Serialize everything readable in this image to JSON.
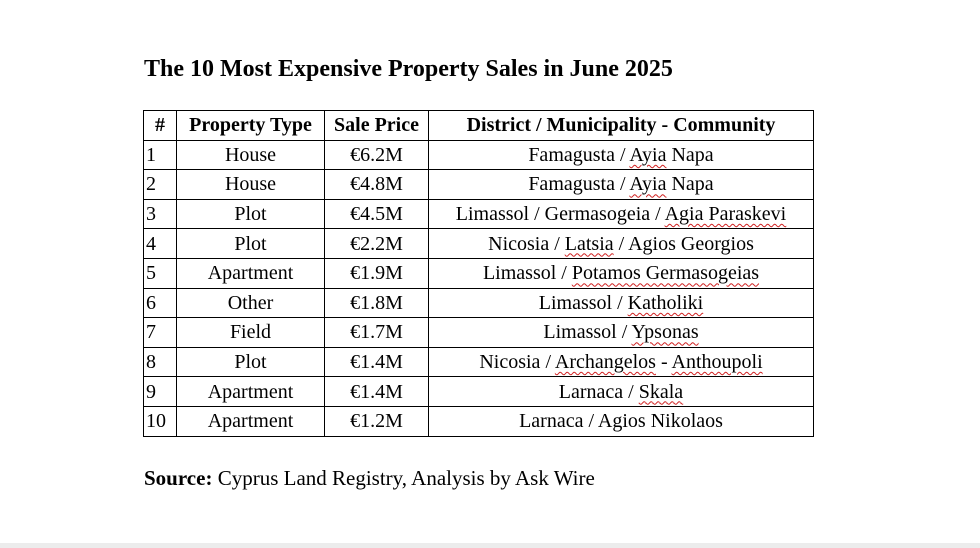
{
  "title": "The 10 Most Expensive Property Sales in June 2025",
  "table": {
    "headers": [
      "#",
      "Property Type",
      "Sale Price",
      "District / Municipality - Community"
    ],
    "rows": [
      {
        "rank": "1",
        "type": "House",
        "price": "€6.2M",
        "location": [
          {
            "text": "Famagusta / "
          },
          {
            "text": "Ayia",
            "spell": true
          },
          {
            "text": " Napa"
          }
        ]
      },
      {
        "rank": "2",
        "type": "House",
        "price": "€4.8M",
        "location": [
          {
            "text": "Famagusta / "
          },
          {
            "text": "Ayia",
            "spell": true
          },
          {
            "text": " Napa"
          }
        ]
      },
      {
        "rank": "3",
        "type": "Plot",
        "price": "€4.5M",
        "location": [
          {
            "text": "Limassol / Germasogeia / "
          },
          {
            "text": "Agia Paraskevi",
            "spell": true
          }
        ]
      },
      {
        "rank": "4",
        "type": "Plot",
        "price": "€2.2M",
        "location": [
          {
            "text": "Nicosia / "
          },
          {
            "text": "Latsia",
            "spell": true
          },
          {
            "text": " / Agios Georgios"
          }
        ]
      },
      {
        "rank": "5",
        "type": "Apartment",
        "price": "€1.9M",
        "location": [
          {
            "text": "Limassol / "
          },
          {
            "text": "Potamos Germasogeias",
            "spell": true
          }
        ]
      },
      {
        "rank": "6",
        "type": "Other",
        "price": "€1.8M",
        "location": [
          {
            "text": "Limassol / "
          },
          {
            "text": "Katholiki",
            "spell": true
          }
        ]
      },
      {
        "rank": "7",
        "type": "Field",
        "price": "€1.7M",
        "location": [
          {
            "text": "Limassol / "
          },
          {
            "text": "Ypsonas",
            "spell": true
          }
        ]
      },
      {
        "rank": "8",
        "type": "Plot",
        "price": "€1.4M",
        "location": [
          {
            "text": "Nicosia / "
          },
          {
            "text": "Archangelos",
            "spell": true
          },
          {
            "text": " - "
          },
          {
            "text": "Anthoupoli",
            "spell": true
          }
        ]
      },
      {
        "rank": "9",
        "type": "Apartment",
        "price": "€1.4M",
        "location": [
          {
            "text": "Larnaca / "
          },
          {
            "text": "Skala",
            "spell": true
          }
        ]
      },
      {
        "rank": "10",
        "type": "Apartment",
        "price": "€1.2M",
        "location": [
          {
            "text": "Larnaca / Agios Nikolaos"
          }
        ]
      }
    ]
  },
  "source": {
    "label": "Source:",
    "text": " Cyprus Land Registry, Analysis by Ask Wire"
  },
  "colors": {
    "text": "#000000",
    "background": "#ffffff",
    "spellcheck_underline": "#d02020"
  }
}
